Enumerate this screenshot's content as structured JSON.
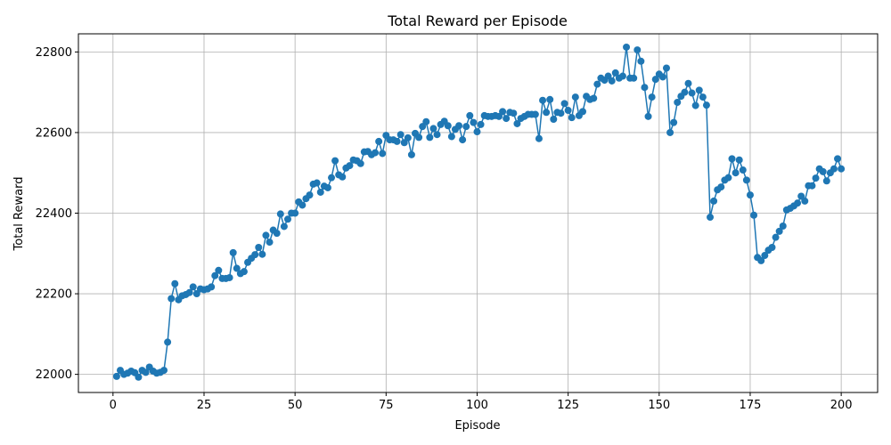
{
  "chart_data": {
    "type": "line",
    "title": "Total Reward per Episode",
    "xlabel": "Episode",
    "ylabel": "Total Reward",
    "xlim": [
      -9.5,
      210
    ],
    "ylim": [
      21955,
      22845
    ],
    "xticks": [
      0,
      25,
      50,
      75,
      100,
      125,
      150,
      175,
      200
    ],
    "yticks": [
      22000,
      22200,
      22400,
      22600,
      22800
    ],
    "grid": true,
    "markers": true,
    "line_color": "#1f77b4",
    "series": [
      {
        "x": [
          1,
          2,
          3,
          4,
          5,
          6,
          7,
          8,
          9,
          10,
          11,
          12,
          13,
          14,
          15,
          16,
          17,
          18,
          19,
          20,
          21,
          22,
          23,
          24,
          25,
          26,
          27,
          28,
          29,
          30,
          31,
          32,
          33,
          34,
          35,
          36,
          37,
          38,
          39,
          40,
          41,
          42,
          43,
          44,
          45,
          46,
          47,
          48,
          49,
          50,
          51,
          52,
          53,
          54,
          55,
          56,
          57,
          58,
          59,
          60,
          61,
          62,
          63,
          64,
          65,
          66,
          67,
          68,
          69,
          70,
          71,
          72,
          73,
          74,
          75,
          76,
          77,
          78,
          79,
          80,
          81,
          82,
          83,
          84,
          85,
          86,
          87,
          88,
          89,
          90,
          91,
          92,
          93,
          94,
          95,
          96,
          97,
          98,
          99,
          100,
          101,
          102,
          103,
          104,
          105,
          106,
          107,
          108,
          109,
          110,
          111,
          112,
          113,
          114,
          115,
          116,
          117,
          118,
          119,
          120,
          121,
          122,
          123,
          124,
          125,
          126,
          127,
          128,
          129,
          130,
          131,
          132,
          133,
          134,
          135,
          136,
          137,
          138,
          139,
          140,
          141,
          142,
          143,
          144,
          145,
          146,
          147,
          148,
          149,
          150,
          151,
          152,
          153,
          154,
          155,
          156,
          157,
          158,
          159,
          160,
          161,
          162,
          163,
          164,
          165,
          166,
          167,
          168,
          169,
          170,
          171,
          172,
          173,
          174,
          175,
          176,
          177,
          178,
          179,
          180,
          181,
          182,
          183,
          184,
          185,
          186,
          187,
          188,
          189,
          190,
          191,
          192,
          193,
          194,
          195,
          196,
          197,
          198,
          199,
          200
        ],
        "y": [
          21995,
          22010,
          22000,
          22003,
          22008,
          22004,
          21993,
          22010,
          22005,
          22018,
          22008,
          22003,
          22005,
          22010,
          22080,
          22188,
          22225,
          22185,
          22195,
          22198,
          22203,
          22217,
          22200,
          22212,
          22210,
          22212,
          22217,
          22245,
          22258,
          22238,
          22238,
          22240,
          22302,
          22263,
          22250,
          22255,
          22278,
          22288,
          22297,
          22315,
          22298,
          22345,
          22328,
          22358,
          22350,
          22398,
          22367,
          22385,
          22400,
          22400,
          22428,
          22420,
          22436,
          22445,
          22472,
          22475,
          22452,
          22467,
          22463,
          22488,
          22530,
          22495,
          22490,
          22512,
          22518,
          22532,
          22530,
          22523,
          22552,
          22553,
          22545,
          22550,
          22578,
          22548,
          22593,
          22582,
          22582,
          22578,
          22595,
          22575,
          22587,
          22545,
          22598,
          22588,
          22615,
          22627,
          22588,
          22610,
          22595,
          22620,
          22628,
          22617,
          22590,
          22608,
          22617,
          22582,
          22615,
          22642,
          22625,
          22602,
          22620,
          22642,
          22640,
          22640,
          22642,
          22640,
          22652,
          22635,
          22650,
          22648,
          22622,
          22635,
          22640,
          22645,
          22645,
          22645,
          22585,
          22680,
          22650,
          22682,
          22633,
          22650,
          22648,
          22672,
          22655,
          22637,
          22688,
          22642,
          22652,
          22690,
          22682,
          22685,
          22720,
          22735,
          22730,
          22740,
          22728,
          22748,
          22735,
          22740,
          22812,
          22735,
          22735,
          22805,
          22777,
          22712,
          22640,
          22688,
          22732,
          22745,
          22738,
          22760,
          22600,
          22625,
          22675,
          22690,
          22700,
          22722,
          22698,
          22667,
          22705,
          22688,
          22668,
          22390,
          22430,
          22458,
          22465,
          22482,
          22488,
          22535,
          22500,
          22532,
          22507,
          22482,
          22445,
          22395,
          22290,
          22282,
          22295,
          22308,
          22315,
          22340,
          22355,
          22368,
          22408,
          22412,
          22418,
          22425,
          22442,
          22430,
          22468,
          22468,
          22487,
          22510,
          22503,
          22480,
          22500,
          22510,
          22535,
          22510
        ]
      }
    ]
  }
}
